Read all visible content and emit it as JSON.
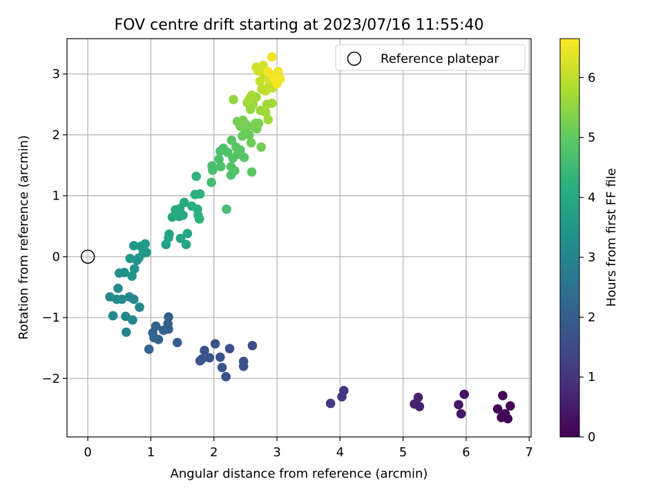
{
  "chart_data": {
    "type": "scatter",
    "title": "FOV centre drift starting at 2023/07/16 11:55:40",
    "xlabel": "Angular distance from reference (arcmin)",
    "ylabel": "Rotation from reference (arcmin)",
    "xlim": [
      -0.33,
      7.03
    ],
    "ylim": [
      -2.96,
      3.58
    ],
    "xticks": [
      0,
      1,
      2,
      3,
      4,
      5,
      6,
      7
    ],
    "yticks": [
      -2,
      -1,
      0,
      1,
      2,
      3
    ],
    "xtick_labels": [
      "0",
      "1",
      "2",
      "3",
      "4",
      "5",
      "6",
      "7"
    ],
    "ytick_labels": [
      "−2",
      "−1",
      "0",
      "1",
      "2",
      "3"
    ],
    "grid": true,
    "legend": {
      "location": "top-right",
      "entries": [
        "Reference platepar"
      ]
    },
    "reference_point": {
      "x": 0,
      "y": 0,
      "label": "Reference platepar"
    },
    "colorbar": {
      "label": "Hours from first FF file",
      "range": [
        0,
        6.65
      ],
      "ticks": [
        0,
        1,
        2,
        3,
        4,
        5,
        6
      ],
      "tick_labels": [
        "0",
        "1",
        "2",
        "3",
        "4",
        "5",
        "6"
      ],
      "colormap": "viridis"
    },
    "series": [
      {
        "color_by": "hours",
        "points": [
          {
            "x": 6.58,
            "y": -2.28,
            "h": 0.05
          },
          {
            "x": 6.7,
            "y": -2.45,
            "h": 0.05
          },
          {
            "x": 6.5,
            "y": -2.5,
            "h": 0.08
          },
          {
            "x": 6.62,
            "y": -2.58,
            "h": 0.06
          },
          {
            "x": 6.56,
            "y": -2.64,
            "h": 0.04
          },
          {
            "x": 6.66,
            "y": -2.66,
            "h": 0.03
          },
          {
            "x": 5.97,
            "y": -2.26,
            "h": 0.35
          },
          {
            "x": 5.88,
            "y": -2.43,
            "h": 0.38
          },
          {
            "x": 5.92,
            "y": -2.58,
            "h": 0.4
          },
          {
            "x": 5.24,
            "y": -2.31,
            "h": 0.6
          },
          {
            "x": 5.18,
            "y": -2.42,
            "h": 0.62
          },
          {
            "x": 5.26,
            "y": -2.46,
            "h": 0.63
          },
          {
            "x": 4.06,
            "y": -2.2,
            "h": 1.05
          },
          {
            "x": 4.03,
            "y": -2.3,
            "h": 1.08
          },
          {
            "x": 3.85,
            "y": -2.41,
            "h": 1.1
          },
          {
            "x": 2.61,
            "y": -1.46,
            "h": 1.55
          },
          {
            "x": 2.25,
            "y": -1.51,
            "h": 1.6
          },
          {
            "x": 2.47,
            "y": -1.72,
            "h": 1.62
          },
          {
            "x": 2.47,
            "y": -1.8,
            "h": 1.63
          },
          {
            "x": 2.1,
            "y": -1.65,
            "h": 1.65
          },
          {
            "x": 2.13,
            "y": -1.82,
            "h": 1.66
          },
          {
            "x": 2.19,
            "y": -1.97,
            "h": 1.68
          },
          {
            "x": 2.02,
            "y": -1.43,
            "h": 1.7
          },
          {
            "x": 1.85,
            "y": -1.54,
            "h": 1.72
          },
          {
            "x": 1.93,
            "y": -1.66,
            "h": 1.73
          },
          {
            "x": 1.81,
            "y": -1.68,
            "h": 1.74
          },
          {
            "x": 1.78,
            "y": -1.71,
            "h": 1.75
          },
          {
            "x": 1.42,
            "y": -1.41,
            "h": 1.95
          },
          {
            "x": 1.28,
            "y": -0.99,
            "h": 2.0
          },
          {
            "x": 1.27,
            "y": -1.1,
            "h": 2.02
          },
          {
            "x": 1.28,
            "y": -1.19,
            "h": 2.05
          },
          {
            "x": 1.2,
            "y": -1.21,
            "h": 2.07
          },
          {
            "x": 1.08,
            "y": -1.14,
            "h": 2.08
          },
          {
            "x": 1.03,
            "y": -1.25,
            "h": 2.1
          },
          {
            "x": 1.05,
            "y": -1.33,
            "h": 2.12
          },
          {
            "x": 1.12,
            "y": -1.36,
            "h": 2.13
          },
          {
            "x": 0.97,
            "y": -1.52,
            "h": 2.15
          },
          {
            "x": 0.61,
            "y": -1.24,
            "h": 3.0
          },
          {
            "x": 0.6,
            "y": -0.98,
            "h": 3.02
          },
          {
            "x": 0.71,
            "y": -1.04,
            "h": 3.03
          },
          {
            "x": 0.4,
            "y": -0.97,
            "h": 3.05
          },
          {
            "x": 0.82,
            "y": -0.83,
            "h": 3.07
          },
          {
            "x": 0.73,
            "y": -0.7,
            "h": 3.08
          },
          {
            "x": 0.66,
            "y": -0.66,
            "h": 3.1
          },
          {
            "x": 0.54,
            "y": -0.7,
            "h": 3.12
          },
          {
            "x": 0.46,
            "y": -0.7,
            "h": 3.13
          },
          {
            "x": 0.35,
            "y": -0.66,
            "h": 3.15
          },
          {
            "x": 0.48,
            "y": -0.52,
            "h": 3.17
          },
          {
            "x": 0.5,
            "y": -0.27,
            "h": 3.35
          },
          {
            "x": 0.58,
            "y": -0.26,
            "h": 3.37
          },
          {
            "x": 0.7,
            "y": -0.32,
            "h": 3.4
          },
          {
            "x": 0.74,
            "y": -0.2,
            "h": 3.42
          },
          {
            "x": 0.81,
            "y": -0.02,
            "h": 3.45
          },
          {
            "x": 0.67,
            "y": -0.03,
            "h": 3.47
          },
          {
            "x": 0.78,
            "y": -0.06,
            "h": 3.48
          },
          {
            "x": 0.88,
            "y": 0.06,
            "h": 3.5
          },
          {
            "x": 0.93,
            "y": 0.07,
            "h": 3.52
          },
          {
            "x": 0.73,
            "y": 0.18,
            "h": 3.55
          },
          {
            "x": 0.84,
            "y": 0.17,
            "h": 3.57
          },
          {
            "x": 0.91,
            "y": 0.21,
            "h": 3.58
          },
          {
            "x": 1.24,
            "y": 0.2,
            "h": 3.85
          },
          {
            "x": 1.28,
            "y": 0.31,
            "h": 3.87
          },
          {
            "x": 1.29,
            "y": 0.37,
            "h": 3.88
          },
          {
            "x": 1.47,
            "y": 0.3,
            "h": 3.9
          },
          {
            "x": 1.56,
            "y": 0.2,
            "h": 3.92
          },
          {
            "x": 1.58,
            "y": 0.38,
            "h": 3.93
          },
          {
            "x": 1.34,
            "y": 0.65,
            "h": 3.95
          },
          {
            "x": 1.4,
            "y": 0.68,
            "h": 3.97
          },
          {
            "x": 1.45,
            "y": 0.66,
            "h": 3.98
          },
          {
            "x": 1.51,
            "y": 0.68,
            "h": 4.0
          },
          {
            "x": 1.39,
            "y": 0.77,
            "h": 4.02
          },
          {
            "x": 1.46,
            "y": 0.79,
            "h": 4.03
          },
          {
            "x": 1.53,
            "y": 0.89,
            "h": 4.05
          },
          {
            "x": 1.65,
            "y": 0.83,
            "h": 4.15
          },
          {
            "x": 1.74,
            "y": 0.78,
            "h": 4.17
          },
          {
            "x": 1.7,
            "y": 1.02,
            "h": 4.2
          },
          {
            "x": 1.78,
            "y": 1.03,
            "h": 4.22
          },
          {
            "x": 1.75,
            "y": 0.68,
            "h": 4.23
          },
          {
            "x": 1.77,
            "y": 0.62,
            "h": 4.25
          },
          {
            "x": 1.72,
            "y": 1.32,
            "h": 4.3
          },
          {
            "x": 1.96,
            "y": 1.22,
            "h": 4.6
          },
          {
            "x": 2.2,
            "y": 0.78,
            "h": 4.62
          },
          {
            "x": 1.98,
            "y": 1.42,
            "h": 4.65
          },
          {
            "x": 1.97,
            "y": 1.49,
            "h": 4.67
          },
          {
            "x": 2.11,
            "y": 1.48,
            "h": 4.68
          },
          {
            "x": 2.08,
            "y": 1.6,
            "h": 4.7
          },
          {
            "x": 2.1,
            "y": 1.73,
            "h": 4.72
          },
          {
            "x": 2.15,
            "y": 1.78,
            "h": 4.73
          },
          {
            "x": 2.22,
            "y": 1.71,
            "h": 4.75
          },
          {
            "x": 2.27,
            "y": 1.34,
            "h": 4.77
          },
          {
            "x": 2.27,
            "y": 1.48,
            "h": 4.78
          },
          {
            "x": 2.33,
            "y": 1.41,
            "h": 4.8
          },
          {
            "x": 2.3,
            "y": 1.62,
            "h": 4.82
          },
          {
            "x": 2.38,
            "y": 1.68,
            "h": 4.83
          },
          {
            "x": 2.48,
            "y": 1.63,
            "h": 4.85
          },
          {
            "x": 2.28,
            "y": 1.91,
            "h": 4.87
          },
          {
            "x": 2.35,
            "y": 1.8,
            "h": 4.88
          },
          {
            "x": 2.42,
            "y": 1.75,
            "h": 4.9
          },
          {
            "x": 2.6,
            "y": 1.39,
            "h": 4.92
          },
          {
            "x": 2.45,
            "y": 1.98,
            "h": 5.1
          },
          {
            "x": 2.5,
            "y": 2.07,
            "h": 5.12
          },
          {
            "x": 2.56,
            "y": 2.0,
            "h": 5.13
          },
          {
            "x": 2.59,
            "y": 1.87,
            "h": 5.15
          },
          {
            "x": 2.63,
            "y": 2.14,
            "h": 5.17
          },
          {
            "x": 2.68,
            "y": 2.1,
            "h": 5.18
          },
          {
            "x": 2.75,
            "y": 1.8,
            "h": 5.2
          },
          {
            "x": 2.37,
            "y": 2.22,
            "h": 5.22
          },
          {
            "x": 2.42,
            "y": 2.14,
            "h": 5.23
          },
          {
            "x": 2.51,
            "y": 2.17,
            "h": 5.25
          },
          {
            "x": 2.46,
            "y": 2.24,
            "h": 5.27
          },
          {
            "x": 2.66,
            "y": 2.19,
            "h": 5.28
          },
          {
            "x": 2.71,
            "y": 2.19,
            "h": 5.3
          },
          {
            "x": 2.31,
            "y": 2.58,
            "h": 5.55
          },
          {
            "x": 2.53,
            "y": 2.53,
            "h": 5.57
          },
          {
            "x": 2.58,
            "y": 2.42,
            "h": 5.58
          },
          {
            "x": 2.62,
            "y": 2.5,
            "h": 5.6
          },
          {
            "x": 2.67,
            "y": 2.62,
            "h": 5.62
          },
          {
            "x": 2.74,
            "y": 2.4,
            "h": 5.63
          },
          {
            "x": 2.82,
            "y": 2.37,
            "h": 5.65
          },
          {
            "x": 2.86,
            "y": 2.25,
            "h": 5.67
          },
          {
            "x": 2.84,
            "y": 2.5,
            "h": 5.68
          },
          {
            "x": 2.92,
            "y": 2.52,
            "h": 5.7
          },
          {
            "x": 2.57,
            "y": 2.6,
            "h": 5.72
          },
          {
            "x": 2.6,
            "y": 2.65,
            "h": 5.73
          },
          {
            "x": 2.55,
            "y": 2.56,
            "h": 5.75
          },
          {
            "x": 2.76,
            "y": 2.75,
            "h": 6.0
          },
          {
            "x": 2.82,
            "y": 2.72,
            "h": 6.02
          },
          {
            "x": 2.88,
            "y": 2.82,
            "h": 6.03
          },
          {
            "x": 2.93,
            "y": 2.77,
            "h": 6.05
          },
          {
            "x": 2.73,
            "y": 2.88,
            "h": 6.07
          },
          {
            "x": 2.84,
            "y": 2.94,
            "h": 6.08
          },
          {
            "x": 2.79,
            "y": 2.99,
            "h": 6.1
          },
          {
            "x": 2.91,
            "y": 2.98,
            "h": 6.12
          },
          {
            "x": 2.7,
            "y": 3.05,
            "h": 6.15
          },
          {
            "x": 2.67,
            "y": 3.11,
            "h": 6.17
          },
          {
            "x": 2.73,
            "y": 3.09,
            "h": 6.18
          },
          {
            "x": 2.78,
            "y": 3.14,
            "h": 6.2
          },
          {
            "x": 2.88,
            "y": 2.9,
            "h": 6.22
          },
          {
            "x": 2.92,
            "y": 3.28,
            "h": 6.5
          },
          {
            "x": 3.02,
            "y": 3.04,
            "h": 6.52
          },
          {
            "x": 3.05,
            "y": 2.92,
            "h": 6.55
          },
          {
            "x": 3.0,
            "y": 2.84,
            "h": 6.57
          },
          {
            "x": 2.86,
            "y": 3.04,
            "h": 6.58
          },
          {
            "x": 2.95,
            "y": 2.94,
            "h": 6.6
          }
        ]
      }
    ]
  }
}
